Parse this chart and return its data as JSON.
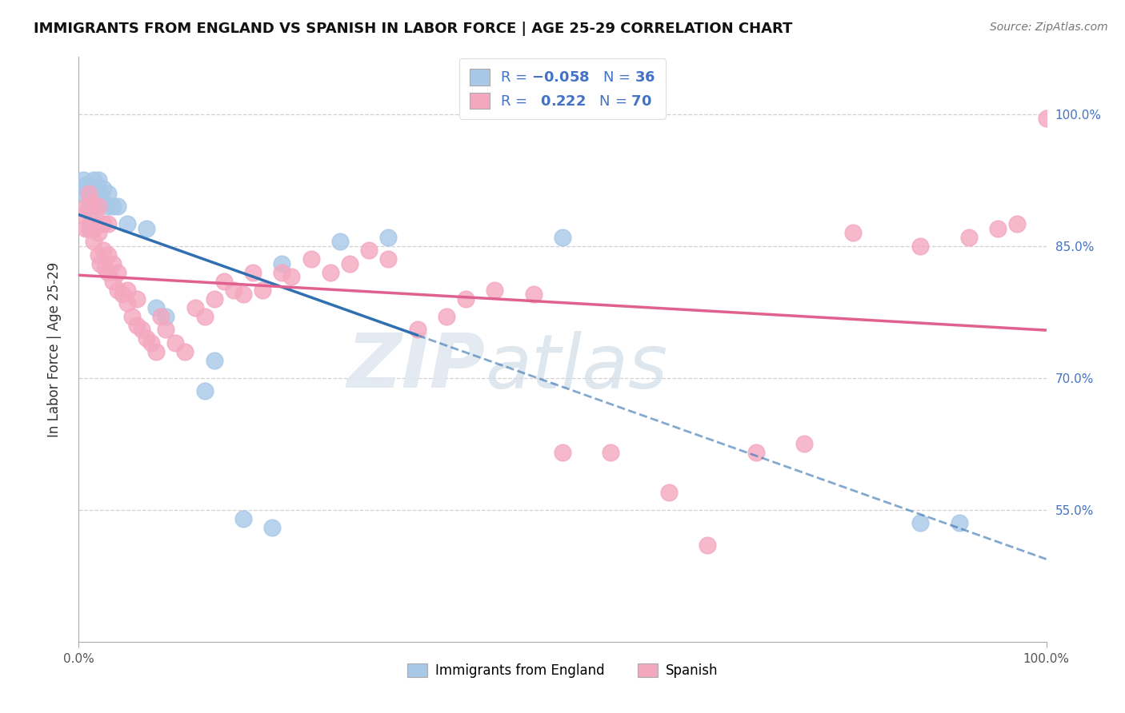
{
  "title": "IMMIGRANTS FROM ENGLAND VS SPANISH IN LABOR FORCE | AGE 25-29 CORRELATION CHART",
  "source": "Source: ZipAtlas.com",
  "ylabel": "In Labor Force | Age 25-29",
  "legend_n_england": "36",
  "legend_r_spanish": "0.222",
  "legend_n_spanish": "70",
  "blue_scatter_color": "#a8c8e8",
  "pink_scatter_color": "#f4a8c0",
  "blue_line_color": "#3070b0",
  "pink_line_color": "#e06090",
  "right_tick_color": "#4472c4",
  "ytick_values": [
    0.55,
    0.7,
    0.85,
    1.0
  ],
  "ytick_labels": [
    "55.0%",
    "70.0%",
    "85.0%",
    "100.0%"
  ],
  "xlim": [
    0.0,
    1.0
  ],
  "ylim": [
    0.4,
    1.065
  ],
  "england_x": [
    0.005,
    0.005,
    0.007,
    0.008,
    0.01,
    0.01,
    0.01,
    0.012,
    0.013,
    0.013,
    0.015,
    0.015,
    0.015,
    0.02,
    0.02,
    0.02,
    0.025,
    0.025,
    0.03,
    0.03,
    0.035,
    0.04,
    0.05,
    0.07,
    0.08,
    0.09,
    0.13,
    0.14,
    0.17,
    0.2,
    0.21,
    0.27,
    0.32,
    0.5,
    0.87,
    0.91
  ],
  "england_y": [
    0.91,
    0.925,
    0.915,
    0.92,
    0.895,
    0.905,
    0.915,
    0.87,
    0.88,
    0.895,
    0.905,
    0.915,
    0.925,
    0.9,
    0.91,
    0.925,
    0.9,
    0.915,
    0.895,
    0.91,
    0.895,
    0.895,
    0.875,
    0.87,
    0.78,
    0.77,
    0.685,
    0.72,
    0.54,
    0.53,
    0.83,
    0.855,
    0.86,
    0.86,
    0.535,
    0.535
  ],
  "spanish_x": [
    0.005,
    0.007,
    0.008,
    0.01,
    0.01,
    0.012,
    0.013,
    0.015,
    0.015,
    0.017,
    0.02,
    0.02,
    0.02,
    0.022,
    0.025,
    0.025,
    0.027,
    0.03,
    0.03,
    0.03,
    0.035,
    0.035,
    0.04,
    0.04,
    0.045,
    0.05,
    0.05,
    0.055,
    0.06,
    0.06,
    0.065,
    0.07,
    0.075,
    0.08,
    0.085,
    0.09,
    0.1,
    0.11,
    0.12,
    0.13,
    0.14,
    0.15,
    0.16,
    0.17,
    0.18,
    0.19,
    0.21,
    0.22,
    0.24,
    0.26,
    0.28,
    0.3,
    0.32,
    0.35,
    0.38,
    0.4,
    0.43,
    0.47,
    0.5,
    0.55,
    0.61,
    0.65,
    0.7,
    0.75,
    0.8,
    0.87,
    0.92,
    0.95,
    0.97,
    1.0
  ],
  "spanish_y": [
    0.885,
    0.87,
    0.895,
    0.87,
    0.91,
    0.875,
    0.9,
    0.855,
    0.87,
    0.885,
    0.84,
    0.865,
    0.895,
    0.83,
    0.845,
    0.875,
    0.825,
    0.82,
    0.84,
    0.875,
    0.81,
    0.83,
    0.8,
    0.82,
    0.795,
    0.785,
    0.8,
    0.77,
    0.76,
    0.79,
    0.755,
    0.745,
    0.74,
    0.73,
    0.77,
    0.755,
    0.74,
    0.73,
    0.78,
    0.77,
    0.79,
    0.81,
    0.8,
    0.795,
    0.82,
    0.8,
    0.82,
    0.815,
    0.835,
    0.82,
    0.83,
    0.845,
    0.835,
    0.755,
    0.77,
    0.79,
    0.8,
    0.795,
    0.615,
    0.615,
    0.57,
    0.51,
    0.615,
    0.625,
    0.865,
    0.85,
    0.86,
    0.87,
    0.875,
    0.995
  ],
  "figsize": [
    14.06,
    8.92
  ],
  "dpi": 100
}
